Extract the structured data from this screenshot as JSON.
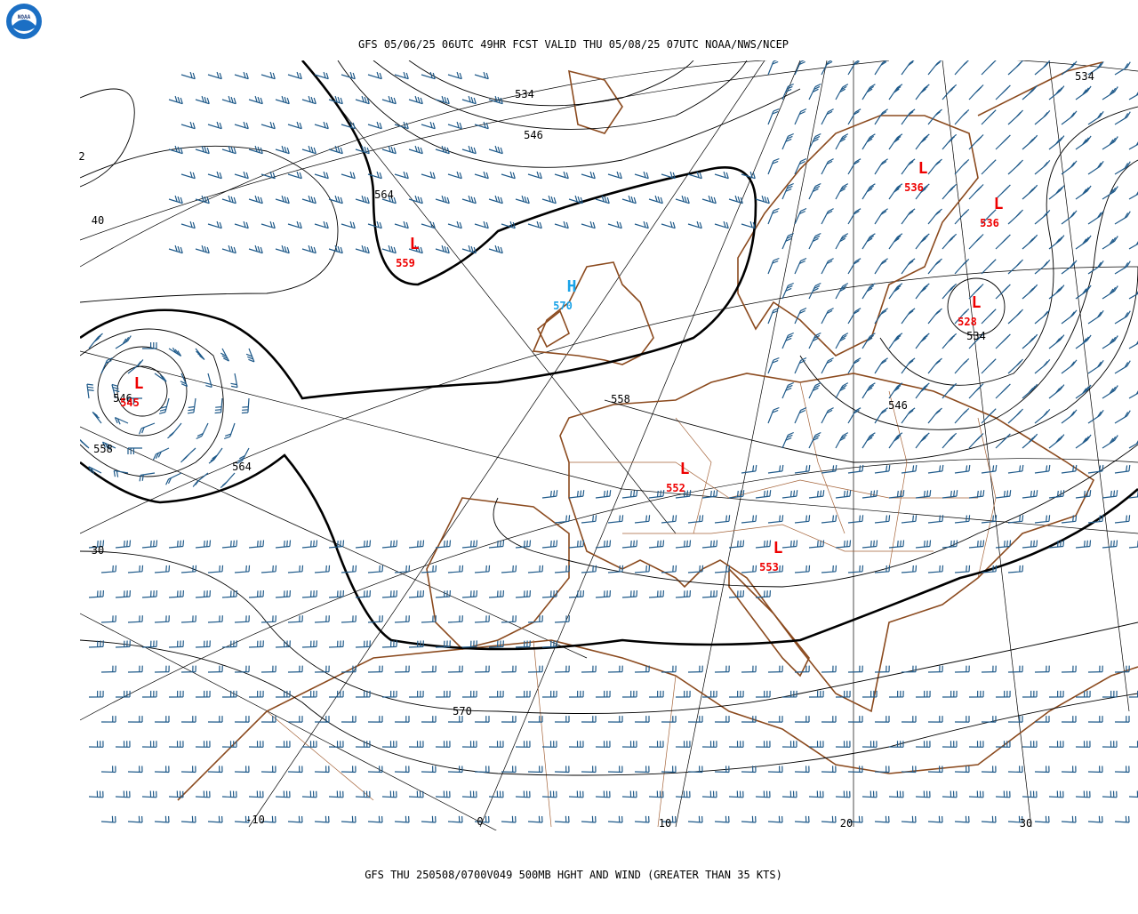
{
  "header": {
    "title": "GFS 05/06/25 06UTC 49HR FCST VALID THU 05/08/25 07UTC NOAA/NWS/NCEP"
  },
  "footer": {
    "caption": "GFS THU 250508/0700V049 500MB HGHT AND WIND (GREATER THAN 35 KTS)"
  },
  "logo": {
    "label": "NOAA"
  },
  "contour_labels": [
    "534",
    "546",
    "564",
    "546",
    "558",
    "564",
    "558",
    "570",
    "534",
    "534",
    "546"
  ],
  "latitude_labels": [
    "2",
    "40",
    "30"
  ],
  "longitude_labels": [
    "-10",
    "0",
    "10",
    "20",
    "30"
  ],
  "centers": [
    {
      "symbol": "L",
      "value": "559"
    },
    {
      "symbol": "H",
      "value": "570"
    },
    {
      "symbol": "L",
      "value": "545"
    },
    {
      "symbol": "L",
      "value": "552"
    },
    {
      "symbol": "L",
      "value": "553"
    },
    {
      "symbol": "L",
      "value": "536"
    },
    {
      "symbol": "L",
      "value": "536"
    },
    {
      "symbol": "L",
      "value": "528"
    }
  ]
}
